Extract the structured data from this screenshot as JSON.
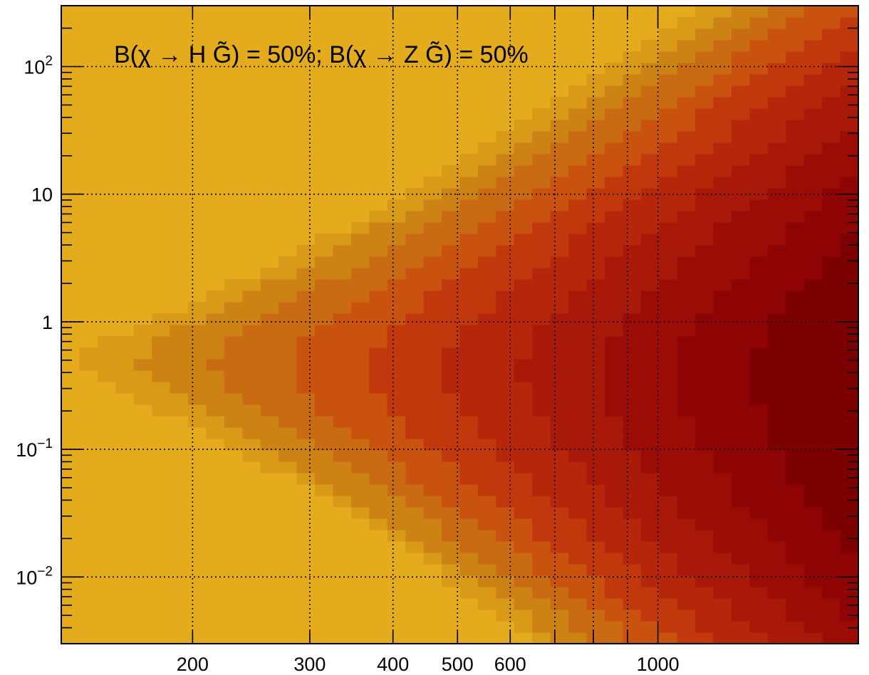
{
  "chart_data": {
    "type": "heatmap",
    "title": "",
    "xlabel": "",
    "ylabel": "",
    "x_scale": "log",
    "y_scale": "log",
    "xlim": [
      127,
      2000
    ],
    "ylim": [
      0.003,
      300
    ],
    "grid": true,
    "x_ticks": [
      {
        "value": 200,
        "label": "200"
      },
      {
        "value": 300,
        "label": "300"
      },
      {
        "value": 400,
        "label": "400"
      },
      {
        "value": 500,
        "label": "500"
      },
      {
        "value": 600,
        "label": "600"
      },
      {
        "value": 1000,
        "label": "1000"
      }
    ],
    "x_gridlines": [
      200,
      300,
      400,
      500,
      600,
      700,
      800,
      900,
      1000
    ],
    "y_ticks": [
      {
        "value": 0.01,
        "base": "10",
        "exp": "−2"
      },
      {
        "value": 0.1,
        "base": "10",
        "exp": "−1"
      },
      {
        "value": 1,
        "base": "1",
        "exp": ""
      },
      {
        "value": 10,
        "base": "10",
        "exp": ""
      },
      {
        "value": 100,
        "base": "10",
        "exp": "2"
      }
    ],
    "annotation": "B(χ → H G̃) = 50%; B(χ → Z G̃) = 50%",
    "colors": {
      "background": "#e4ab1c",
      "palette": [
        "#e4ab1c",
        "#d99a18",
        "#cd8314",
        "#c86b12",
        "#c8520e",
        "#c0380c",
        "#b5260b",
        "#a81909",
        "#9c0c07",
        "#8f0505",
        "#7d0000"
      ]
    },
    "field": {
      "peak_x": 1900,
      "peak_y": 0.5,
      "description_levels": 10
    }
  }
}
